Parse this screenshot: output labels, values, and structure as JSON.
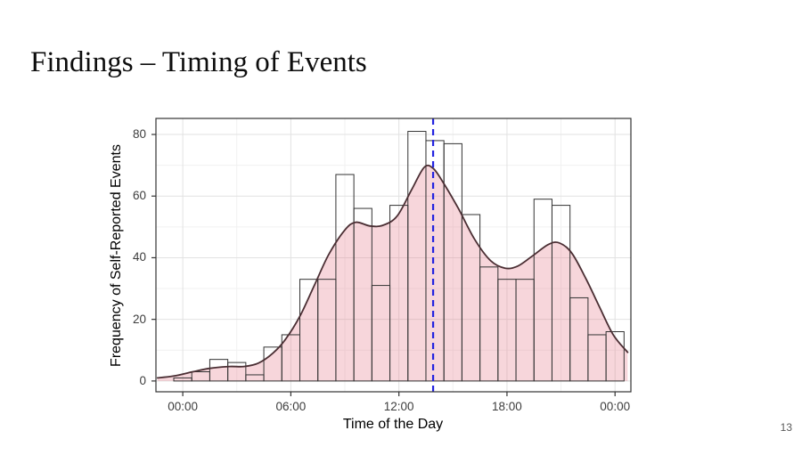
{
  "slide": {
    "title": "Findings – Timing of Events",
    "page_number": "13"
  },
  "chart_data": {
    "type": "bar",
    "subtype": "histogram-with-density",
    "title": "",
    "xlabel": "Time of the Day",
    "ylabel": "Frequency of Self-Reported Events",
    "x_ticks": [
      {
        "hour": 0,
        "label": "00:00"
      },
      {
        "hour": 6,
        "label": "06:00"
      },
      {
        "hour": 12,
        "label": "12:00"
      },
      {
        "hour": 18,
        "label": "18:00"
      },
      {
        "hour": 24,
        "label": "00:00"
      }
    ],
    "x_minor_tick_hours": [
      3,
      9,
      15,
      21
    ],
    "y_ticks": [
      0,
      20,
      40,
      60,
      80
    ],
    "y_minor_ticks": [
      10,
      30,
      50,
      70
    ],
    "xlim_hours": [
      -1.49,
      24.88
    ],
    "ylim": [
      -3.5,
      85.2
    ],
    "grid": true,
    "legend": "none",
    "bars": {
      "bin_width_hours": 1,
      "center_hours": [
        0,
        1,
        2,
        3,
        4,
        5,
        6,
        7,
        8,
        9,
        10,
        11,
        12,
        13,
        14,
        15,
        16,
        17,
        18,
        19,
        20,
        21,
        22,
        23,
        24
      ],
      "counts": [
        1,
        3,
        7,
        6,
        2,
        11,
        15,
        33,
        33,
        67,
        56,
        31,
        57,
        81,
        78,
        77,
        54,
        37,
        33,
        33,
        59,
        57,
        27,
        15,
        16
      ]
    },
    "density_curve": {
      "points_hour_value": [
        [
          -1.4,
          1.0
        ],
        [
          -0.5,
          1.6
        ],
        [
          0.5,
          2.9
        ],
        [
          1.5,
          4.1
        ],
        [
          2.6,
          4.7
        ],
        [
          3.4,
          4.7
        ],
        [
          4.2,
          5.8
        ],
        [
          5.0,
          9.0
        ],
        [
          5.7,
          13.5
        ],
        [
          6.5,
          21
        ],
        [
          7.3,
          31
        ],
        [
          8.1,
          41
        ],
        [
          9.0,
          49
        ],
        [
          9.6,
          51.5
        ],
        [
          10.4,
          50.3
        ],
        [
          11.1,
          50.5
        ],
        [
          11.9,
          53.5
        ],
        [
          12.7,
          62
        ],
        [
          13.4,
          69.3
        ],
        [
          13.9,
          69.0
        ],
        [
          14.5,
          64
        ],
        [
          15.3,
          56
        ],
        [
          16.2,
          46
        ],
        [
          17.1,
          39
        ],
        [
          17.9,
          36.6
        ],
        [
          18.6,
          37.3
        ],
        [
          19.4,
          40.5
        ],
        [
          20.3,
          44.3
        ],
        [
          20.9,
          44.8
        ],
        [
          21.6,
          41.5
        ],
        [
          22.4,
          33
        ],
        [
          23.1,
          24.5
        ],
        [
          23.9,
          15
        ],
        [
          24.7,
          9.3
        ]
      ]
    },
    "vline": {
      "hour": 13.9,
      "dashed": true
    },
    "colors": {
      "bar_outline": "#333333",
      "bar_fill": "none",
      "density_fill": "rgba(230,120,135,0.30)",
      "density_line": "#4a2e33",
      "grid_major": "#e2e2e2",
      "grid_minor": "#f1f1f1",
      "panel_border": "#333333",
      "panel_background": "#ffffff",
      "tick_mark": "#333333",
      "axis_text": "#3d3d3d",
      "vline_blue": "#2323e0"
    }
  }
}
